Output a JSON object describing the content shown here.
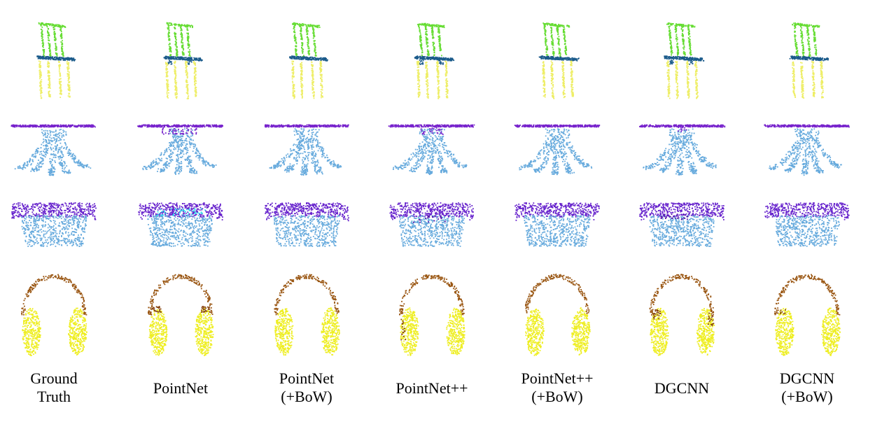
{
  "columns": [
    {
      "label_lines": [
        "Ground",
        "Truth"
      ]
    },
    {
      "label_lines": [
        "PointNet"
      ]
    },
    {
      "label_lines": [
        "PointNet",
        "(+BoW)"
      ]
    },
    {
      "label_lines": [
        "PointNet++"
      ]
    },
    {
      "label_lines": [
        "PointNet++",
        "(+BoW)"
      ]
    },
    {
      "label_lines": [
        "DGCNN"
      ]
    },
    {
      "label_lines": [
        "DGCNN",
        "(+BoW)"
      ]
    }
  ],
  "rows": [
    {
      "object": "chair",
      "icon": "chair-pointcloud-icon"
    },
    {
      "object": "table",
      "icon": "table-pointcloud-icon"
    },
    {
      "object": "lamp",
      "icon": "lamp-pointcloud-icon"
    },
    {
      "object": "headphones",
      "icon": "headphones-pointcloud-icon"
    }
  ],
  "colors": {
    "chair_back": "#66dd33",
    "chair_seat": "#1a5a8a",
    "chair_legs": "#eeee66",
    "table_top": "#7722cc",
    "table_base": "#66aadd",
    "lamp_shade": "#6622cc",
    "lamp_base": "#66aadd",
    "headband": "#995511",
    "earcup": "#eeee22",
    "error_light": "#33ddee",
    "error_dark": "#5511aa",
    "error_brown": "#884411"
  }
}
